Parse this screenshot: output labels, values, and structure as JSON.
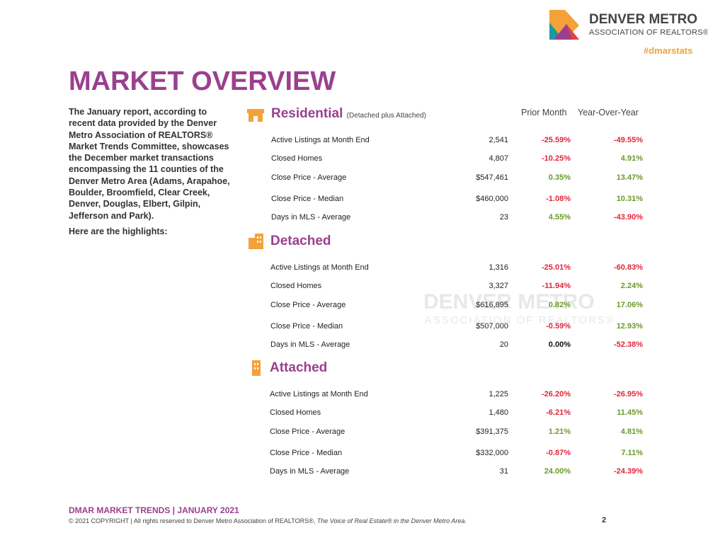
{
  "header": {
    "logo_line1": "DENVER METRO",
    "logo_line2": "ASSOCIATION OF REALTORS®",
    "hashtag": "#dmarstats"
  },
  "title": "MARKET OVERVIEW",
  "intro": [
    "The January report, according to recent data provided by the Denver Metro Association of REALTORS® Market Trends Committee, showcases the December market transactions encompassing the 11 counties of the Denver Metro Area (Adams, Arapahoe, Boulder, Broomfield, Clear Creek, Denver, Douglas, Elbert, Gilpin, Jefferson and Park).",
    "Here are the highlights:"
  ],
  "columns": [
    "Prior Month",
    "Year-Over-Year"
  ],
  "sections": [
    {
      "name": "Residential",
      "note": "(Detached plus Attached)",
      "rows": [
        [
          "Active Listings at Month End",
          "2,541",
          "-25.59%",
          "-49.55%"
        ],
        [
          "Closed Homes",
          "4,807",
          "-10.25%",
          "4.91%"
        ],
        [
          "Close Price - Average",
          "$547,461",
          "0.35%",
          "13.47%"
        ],
        [
          "Close Price - Median",
          "$460,000",
          "-1.08%",
          "10.31%"
        ],
        [
          "Days in MLS - Average",
          "23",
          "4.55%",
          "-43.90%"
        ]
      ]
    },
    {
      "name": "Detached",
      "rows": [
        [
          "Active Listings at Month End",
          "1,316",
          "-25.01%",
          "-60.83%"
        ],
        [
          "Closed Homes",
          "3,327",
          "-11.94%",
          "2.24%"
        ],
        [
          "Close Price - Average",
          "$616,895",
          "0.82%",
          "17.06%"
        ],
        [
          "Close Price - Median",
          "$507,000",
          "-0.59%",
          "12.93%"
        ],
        [
          "Days in MLS - Average",
          "20",
          "0.00%",
          "-52.38%"
        ]
      ]
    },
    {
      "name": "Attached",
      "rows": [
        [
          "Active Listings at Month End",
          "1,225",
          "-26.20%",
          "-26.95%"
        ],
        [
          "Closed Homes",
          "1,480",
          "-6.21%",
          "11.45%"
        ],
        [
          "Close Price - Average",
          "$391,375",
          "1.21%",
          "4.81%"
        ],
        [
          "Close Price - Median",
          "$332,000",
          "-0.87%",
          "7.11%"
        ],
        [
          "Days in MLS - Average",
          "31",
          "24.00%",
          "-24.39%"
        ]
      ]
    }
  ],
  "watermark": {
    "line1": "DENVER METRO",
    "line2": "ASSOCIATION OF REALTORS®"
  },
  "footer": {
    "title": "DMAR MARKET TRENDS | JANUARY 2021",
    "copyright": "© 2021 COPYRIGHT | All rights reserved to Denver Metro Association of REALTORS®,",
    "tagline": "The Voice of Real Estate® in the Denver Metro Area.",
    "page": "2"
  }
}
